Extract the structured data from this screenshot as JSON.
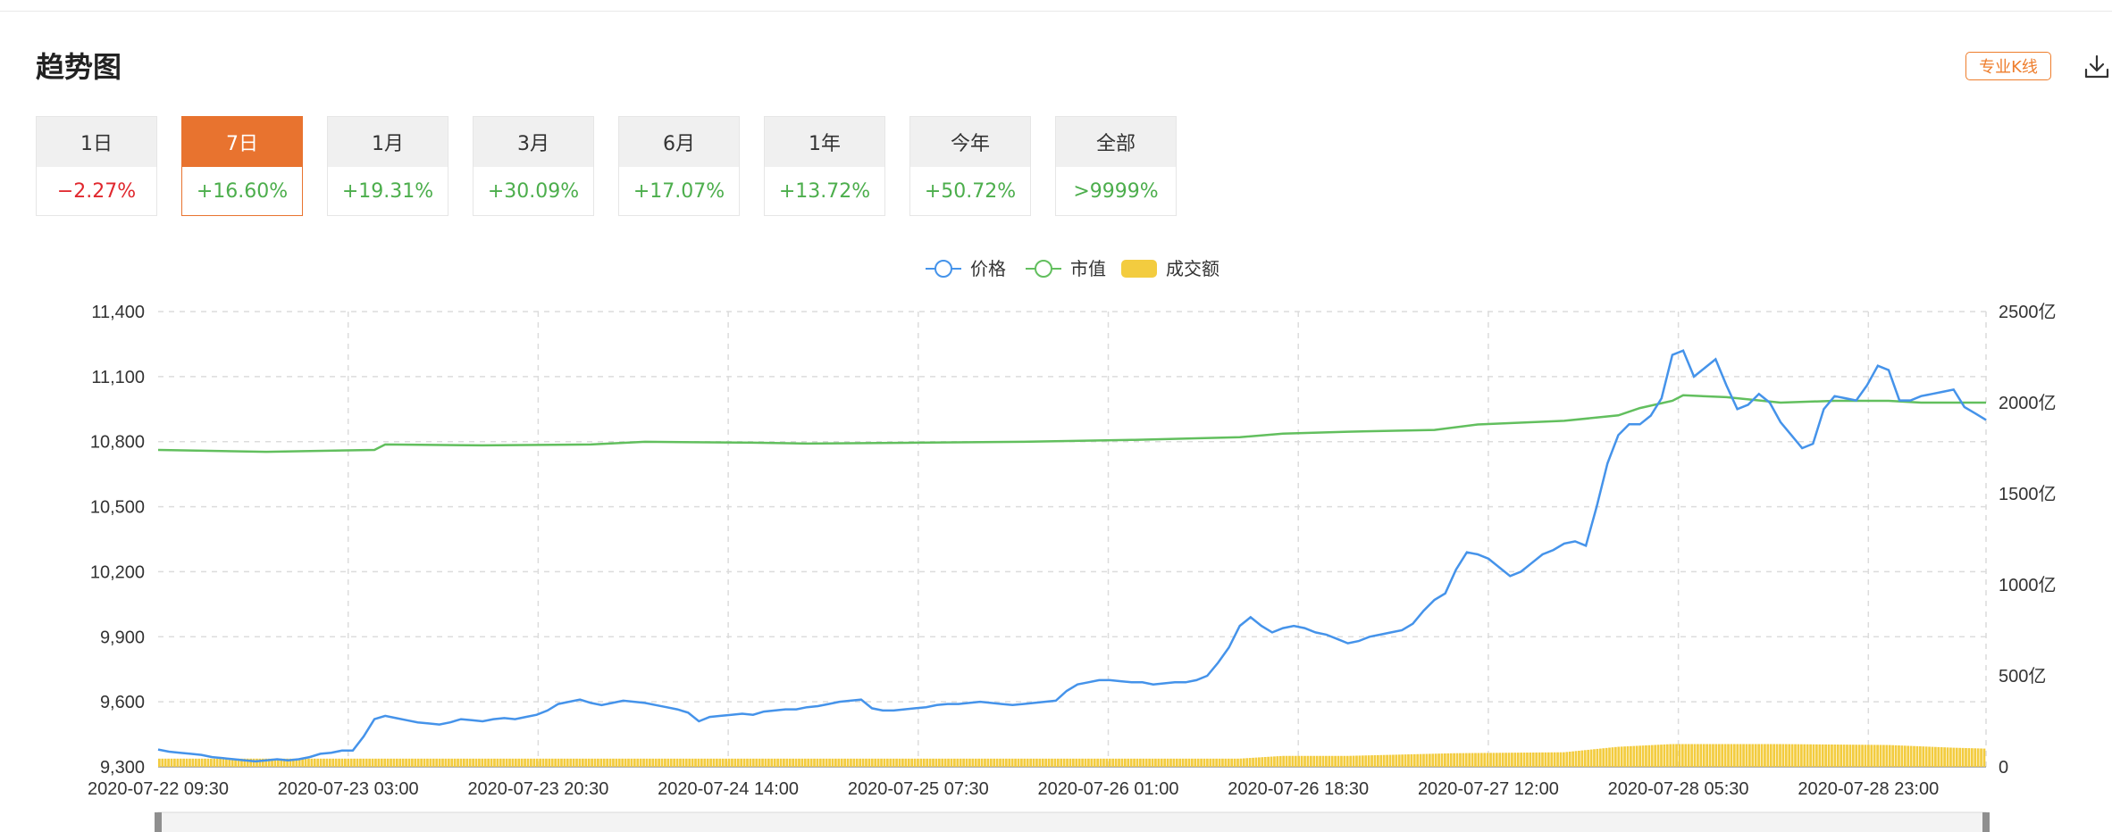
{
  "header": {
    "title": "趋势图",
    "pro_kline_label": "专业K线"
  },
  "tabs": [
    {
      "label": "1日",
      "change": "−2.27%",
      "dir": "down"
    },
    {
      "label": "7日",
      "change": "+16.60%",
      "dir": "up",
      "active": true
    },
    {
      "label": "1月",
      "change": "+19.31%",
      "dir": "up"
    },
    {
      "label": "3月",
      "change": "+30.09%",
      "dir": "up"
    },
    {
      "label": "6月",
      "change": "+17.07%",
      "dir": "up"
    },
    {
      "label": "1年",
      "change": "+13.72%",
      "dir": "up"
    },
    {
      "label": "今年",
      "change": "+50.72%",
      "dir": "up"
    },
    {
      "label": "全部",
      "change": ">9999%",
      "dir": "up"
    }
  ],
  "colors": {
    "up": "#4cae4c",
    "down": "#e0282e",
    "accent": "#e8732f",
    "price": "#4593ea",
    "mcap": "#62bf5e",
    "volume": "#f3cc3f"
  },
  "chart_data": {
    "type": "line",
    "legend": [
      "价格",
      "市值",
      "成交额"
    ],
    "legend_placement": "top-center",
    "grid": true,
    "x_ticks": [
      "2020-07-22 09:30",
      "2020-07-23 03:00",
      "2020-07-23 20:30",
      "2020-07-24 14:00",
      "2020-07-25 07:30",
      "2020-07-26 01:00",
      "2020-07-26 18:30",
      "2020-07-27 12:00",
      "2020-07-28 05:30",
      "2020-07-28 23:00"
    ],
    "y_left_ticks": [
      "9,300",
      "9,600",
      "9,900",
      "10,200",
      "10,500",
      "10,800",
      "11,100",
      "11,400"
    ],
    "y_left_range": [
      9300,
      11400
    ],
    "y_right_ticks": [
      "0",
      "500亿",
      "1000亿",
      "1500亿",
      "2000亿",
      "2500亿"
    ],
    "y_right_range_yi": [
      0,
      2500
    ],
    "x_range_hours_from_start": [
      0,
      169
    ],
    "series": [
      {
        "name": "价格",
        "axis": "left",
        "points": [
          [
            0,
            9380
          ],
          [
            1,
            9370
          ],
          [
            2,
            9365
          ],
          [
            3,
            9360
          ],
          [
            4,
            9355
          ],
          [
            5,
            9345
          ],
          [
            6,
            9340
          ],
          [
            7,
            9335
          ],
          [
            8,
            9330
          ],
          [
            9,
            9325
          ],
          [
            10,
            9330
          ],
          [
            11,
            9335
          ],
          [
            12,
            9330
          ],
          [
            13,
            9335
          ],
          [
            14,
            9345
          ],
          [
            15,
            9360
          ],
          [
            16,
            9365
          ],
          [
            17,
            9375
          ],
          [
            18,
            9375
          ],
          [
            19,
            9440
          ],
          [
            20,
            9520
          ],
          [
            21,
            9535
          ],
          [
            22,
            9525
          ],
          [
            23,
            9515
          ],
          [
            24,
            9505
          ],
          [
            25,
            9500
          ],
          [
            26,
            9495
          ],
          [
            27,
            9505
          ],
          [
            28,
            9520
          ],
          [
            29,
            9515
          ],
          [
            30,
            9510
          ],
          [
            31,
            9520
          ],
          [
            32,
            9525
          ],
          [
            33,
            9520
          ],
          [
            34,
            9530
          ],
          [
            35,
            9540
          ],
          [
            36,
            9560
          ],
          [
            37,
            9590
          ],
          [
            38,
            9600
          ],
          [
            39,
            9610
          ],
          [
            40,
            9595
          ],
          [
            41,
            9585
          ],
          [
            42,
            9595
          ],
          [
            43,
            9605
          ],
          [
            44,
            9600
          ],
          [
            45,
            9595
          ],
          [
            46,
            9585
          ],
          [
            47,
            9575
          ],
          [
            48,
            9565
          ],
          [
            49,
            9550
          ],
          [
            50,
            9510
          ],
          [
            51,
            9530
          ],
          [
            52,
            9535
          ],
          [
            53,
            9540
          ],
          [
            54,
            9545
          ],
          [
            55,
            9540
          ],
          [
            56,
            9555
          ],
          [
            57,
            9560
          ],
          [
            58,
            9565
          ],
          [
            59,
            9565
          ],
          [
            60,
            9575
          ],
          [
            61,
            9580
          ],
          [
            62,
            9590
          ],
          [
            63,
            9600
          ],
          [
            64,
            9605
          ],
          [
            65,
            9610
          ],
          [
            66,
            9570
          ],
          [
            67,
            9560
          ],
          [
            68,
            9560
          ],
          [
            69,
            9565
          ],
          [
            70,
            9570
          ],
          [
            71,
            9575
          ],
          [
            72,
            9585
          ],
          [
            73,
            9590
          ],
          [
            74,
            9590
          ],
          [
            75,
            9595
          ],
          [
            76,
            9600
          ],
          [
            77,
            9595
          ],
          [
            78,
            9590
          ],
          [
            79,
            9585
          ],
          [
            80,
            9590
          ],
          [
            81,
            9595
          ],
          [
            82,
            9600
          ],
          [
            83,
            9605
          ],
          [
            84,
            9650
          ],
          [
            85,
            9680
          ],
          [
            86,
            9690
          ],
          [
            87,
            9700
          ],
          [
            88,
            9700
          ],
          [
            89,
            9695
          ],
          [
            90,
            9690
          ],
          [
            91,
            9690
          ],
          [
            92,
            9680
          ],
          [
            93,
            9685
          ],
          [
            94,
            9690
          ],
          [
            95,
            9690
          ],
          [
            96,
            9700
          ],
          [
            97,
            9720
          ],
          [
            98,
            9780
          ],
          [
            99,
            9850
          ],
          [
            100,
            9950
          ],
          [
            101,
            9990
          ],
          [
            102,
            9950
          ],
          [
            103,
            9920
          ],
          [
            104,
            9940
          ],
          [
            105,
            9950
          ],
          [
            106,
            9940
          ],
          [
            107,
            9920
          ],
          [
            108,
            9910
          ],
          [
            109,
            9890
          ],
          [
            110,
            9870
          ],
          [
            111,
            9880
          ],
          [
            112,
            9900
          ],
          [
            113,
            9910
          ],
          [
            114,
            9920
          ],
          [
            115,
            9930
          ],
          [
            116,
            9960
          ],
          [
            117,
            10020
          ],
          [
            118,
            10070
          ],
          [
            119,
            10100
          ],
          [
            120,
            10210
          ],
          [
            121,
            10290
          ],
          [
            122,
            10280
          ],
          [
            123,
            10260
          ],
          [
            124,
            10220
          ],
          [
            125,
            10180
          ],
          [
            126,
            10200
          ],
          [
            127,
            10240
          ],
          [
            128,
            10280
          ],
          [
            129,
            10300
          ],
          [
            130,
            10330
          ],
          [
            131,
            10340
          ],
          [
            132,
            10320
          ],
          [
            133,
            10500
          ],
          [
            134,
            10700
          ],
          [
            135,
            10830
          ],
          [
            136,
            10880
          ],
          [
            137,
            10880
          ],
          [
            138,
            10920
          ],
          [
            139,
            11000
          ],
          [
            140,
            11200
          ],
          [
            141,
            11220
          ],
          [
            142,
            11100
          ],
          [
            143,
            11140
          ],
          [
            144,
            11180
          ],
          [
            145,
            11060
          ],
          [
            146,
            10950
          ],
          [
            147,
            10970
          ],
          [
            148,
            11020
          ],
          [
            149,
            10980
          ],
          [
            150,
            10890
          ],
          [
            151,
            10830
          ],
          [
            152,
            10770
          ],
          [
            153,
            10790
          ],
          [
            154,
            10950
          ],
          [
            155,
            11010
          ],
          [
            156,
            11000
          ],
          [
            157,
            10990
          ],
          [
            158,
            11060
          ],
          [
            159,
            11150
          ],
          [
            160,
            11130
          ],
          [
            161,
            10990
          ],
          [
            162,
            10990
          ],
          [
            163,
            11010
          ],
          [
            164,
            11020
          ],
          [
            165,
            11030
          ],
          [
            166,
            11040
          ],
          [
            167,
            10960
          ],
          [
            168,
            10930
          ],
          [
            169,
            10900
          ]
        ]
      },
      {
        "name": "市值",
        "axis": "right",
        "points": [
          [
            0,
            1740
          ],
          [
            10,
            1730
          ],
          [
            20,
            1740
          ],
          [
            21,
            1770
          ],
          [
            30,
            1765
          ],
          [
            40,
            1770
          ],
          [
            45,
            1785
          ],
          [
            55,
            1780
          ],
          [
            60,
            1775
          ],
          [
            70,
            1780
          ],
          [
            80,
            1785
          ],
          [
            90,
            1795
          ],
          [
            100,
            1810
          ],
          [
            104,
            1830
          ],
          [
            110,
            1840
          ],
          [
            118,
            1850
          ],
          [
            122,
            1880
          ],
          [
            130,
            1900
          ],
          [
            135,
            1930
          ],
          [
            137,
            1970
          ],
          [
            140,
            2010
          ],
          [
            141,
            2040
          ],
          [
            145,
            2030
          ],
          [
            150,
            2000
          ],
          [
            155,
            2010
          ],
          [
            160,
            2010
          ],
          [
            163,
            2000
          ],
          [
            166,
            2000
          ],
          [
            169,
            2000
          ]
        ]
      },
      {
        "name": "成交额",
        "axis": "right",
        "type": "bar",
        "points": [
          [
            0,
            45
          ],
          [
            20,
            45
          ],
          [
            40,
            45
          ],
          [
            60,
            45
          ],
          [
            80,
            45
          ],
          [
            100,
            45
          ],
          [
            104,
            60
          ],
          [
            110,
            60
          ],
          [
            120,
            75
          ],
          [
            130,
            80
          ],
          [
            135,
            110
          ],
          [
            140,
            125
          ],
          [
            150,
            125
          ],
          [
            160,
            120
          ],
          [
            166,
            105
          ],
          [
            169,
            100
          ]
        ]
      }
    ]
  }
}
